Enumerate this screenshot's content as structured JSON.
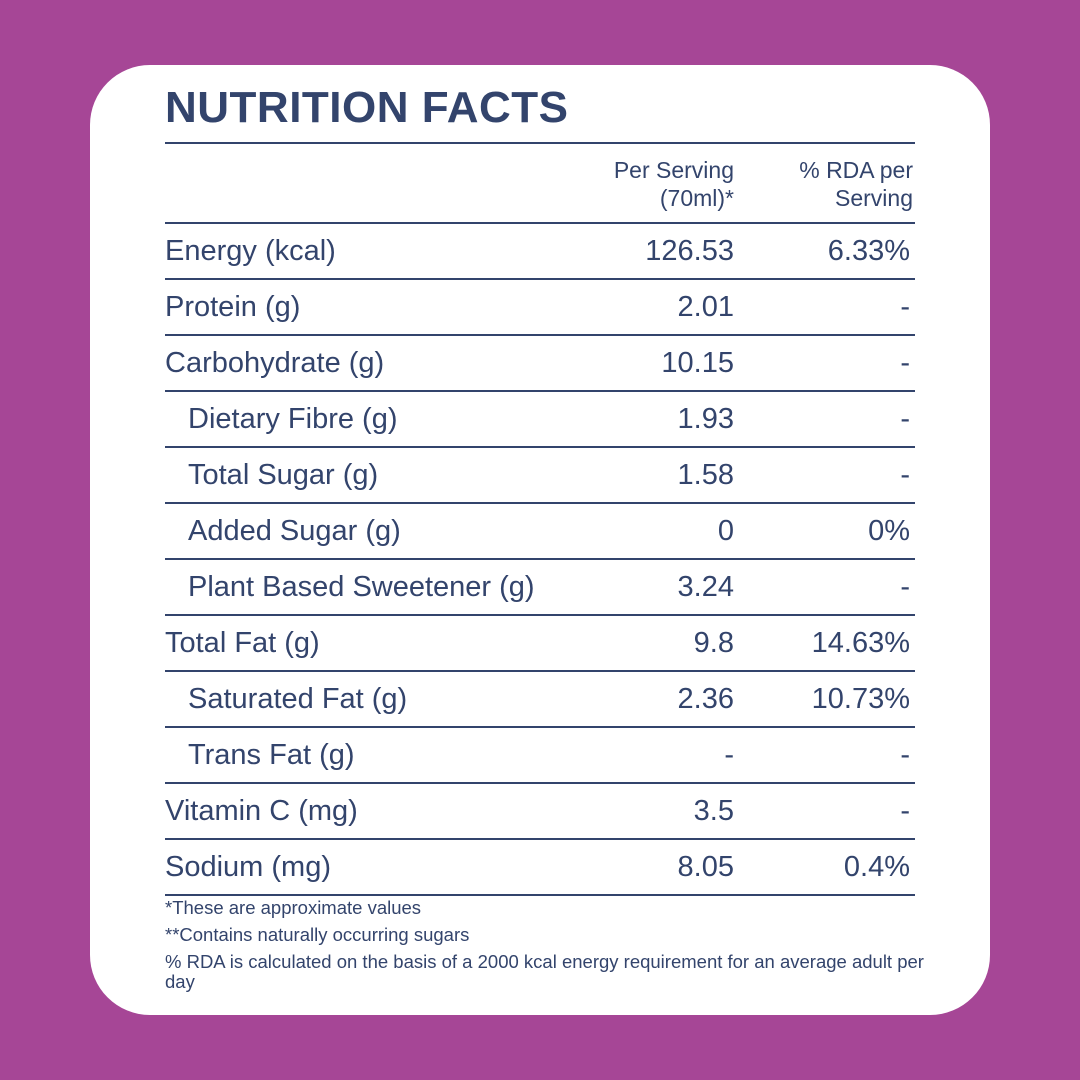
{
  "title": "NUTRITION FACTS",
  "colors": {
    "background": "#a64696",
    "card": "#ffffff",
    "text": "#33446c"
  },
  "header": {
    "per_serving": "Per Serving (70ml)*",
    "rda": "% RDA per Serving"
  },
  "rows": [
    {
      "name": "Energy (kcal)",
      "per_serving": "126.53",
      "rda": "6.33%",
      "indent": false
    },
    {
      "name": "Protein (g)",
      "per_serving": "2.01",
      "rda": "-",
      "indent": false
    },
    {
      "name": "Carbohydrate (g)",
      "per_serving": "10.15",
      "rda": "-",
      "indent": false
    },
    {
      "name": "Dietary Fibre (g)",
      "per_serving": "1.93",
      "rda": "-",
      "indent": true
    },
    {
      "name": "Total Sugar (g)",
      "per_serving": "1.58",
      "rda": "-",
      "indent": true
    },
    {
      "name": "Added Sugar (g)",
      "per_serving": "0",
      "rda": "0%",
      "indent": true
    },
    {
      "name": "Plant Based Sweetener (g)",
      "per_serving": "3.24",
      "rda": "-",
      "indent": true
    },
    {
      "name": "Total Fat (g)",
      "per_serving": "9.8",
      "rda": "14.63%",
      "indent": false
    },
    {
      "name": "Saturated Fat (g)",
      "per_serving": "2.36",
      "rda": "10.73%",
      "indent": true
    },
    {
      "name": "Trans Fat (g)",
      "per_serving": "-",
      "rda": "-",
      "indent": true
    },
    {
      "name": "Vitamin C (mg)",
      "per_serving": "3.5",
      "rda": "-",
      "indent": false
    },
    {
      "name": "Sodium (mg)",
      "per_serving": "8.05",
      "rda": "0.4%",
      "indent": false
    }
  ],
  "notes": [
    "*These are approximate values",
    "**Contains naturally occurring sugars",
    "%  RDA is calculated on the basis of a 2000 kcal energy requirement for an average adult per day"
  ]
}
